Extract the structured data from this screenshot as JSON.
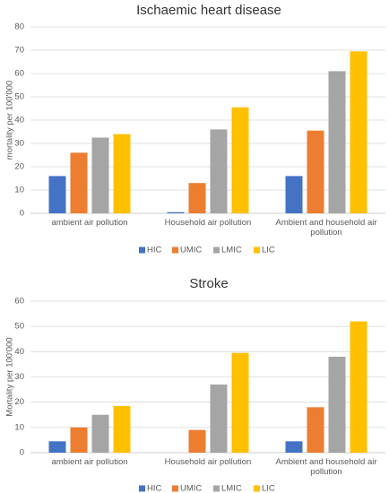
{
  "chart_data": [
    {
      "type": "bar",
      "title": "Ischaemic heart disease",
      "ylabel": "mortality per 100'000",
      "xlabel": "",
      "ylim": [
        0,
        80
      ],
      "yticks": [
        0,
        10,
        20,
        30,
        40,
        50,
        60,
        70,
        80
      ],
      "grid": true,
      "legend_position": "bottom",
      "categories": [
        [
          "ambient air pollution"
        ],
        [
          "Household air pollution"
        ],
        [
          "Ambient and household air",
          "pollution"
        ]
      ],
      "series": [
        {
          "name": "HIC",
          "color": "#4472c4",
          "values": [
            16,
            0.5,
            16
          ]
        },
        {
          "name": "UMIC",
          "color": "#ed7d31",
          "values": [
            26,
            13,
            35.5
          ]
        },
        {
          "name": "LMIC",
          "color": "#a5a5a5",
          "values": [
            32.5,
            36,
            61
          ]
        },
        {
          "name": "LIC",
          "color": "#ffc000",
          "values": [
            34,
            45.5,
            69.5
          ]
        }
      ]
    },
    {
      "type": "bar",
      "title": "Stroke",
      "ylabel": "Mortality per 100'000",
      "xlabel": "",
      "ylim": [
        0,
        60
      ],
      "yticks": [
        0,
        10,
        20,
        30,
        40,
        50,
        60
      ],
      "grid": true,
      "legend_position": "bottom",
      "categories": [
        [
          "ambient air pollution"
        ],
        [
          "Household air pollution"
        ],
        [
          "Ambient and household air",
          "pollution"
        ]
      ],
      "series": [
        {
          "name": "HIC",
          "color": "#4472c4",
          "values": [
            4.5,
            0,
            4.5
          ]
        },
        {
          "name": "UMIC",
          "color": "#ed7d31",
          "values": [
            10,
            9,
            18
          ]
        },
        {
          "name": "LMIC",
          "color": "#a5a5a5",
          "values": [
            15,
            27,
            38
          ]
        },
        {
          "name": "LIC",
          "color": "#ffc000",
          "values": [
            18.5,
            39.5,
            52
          ]
        }
      ]
    }
  ]
}
